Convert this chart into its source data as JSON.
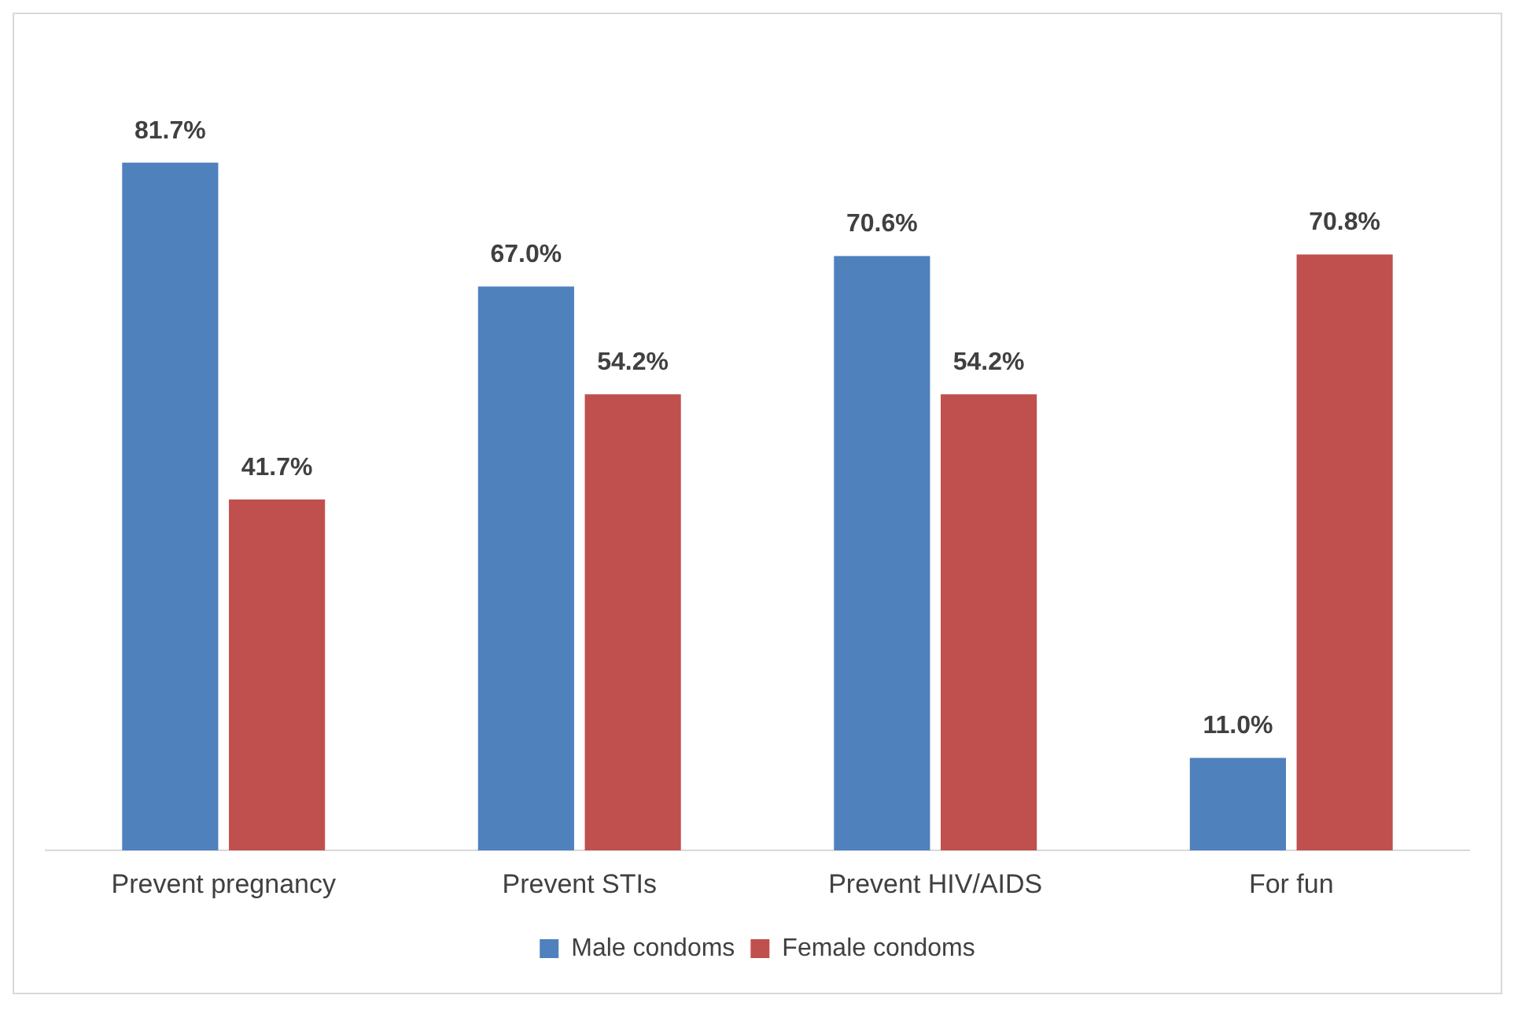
{
  "chart_data": {
    "type": "bar",
    "categories": [
      "Prevent pregnancy",
      "Prevent STIs",
      "Prevent HIV/AIDS",
      "For fun"
    ],
    "series": [
      {
        "name": "Male condoms",
        "color": "#4f81bd",
        "values": [
          81.7,
          67.0,
          70.6,
          11.0
        ],
        "value_labels": [
          "81.7%",
          "67.0%",
          "70.6%",
          "11.0%"
        ]
      },
      {
        "name": "Female condoms",
        "color": "#c0504d",
        "values": [
          41.7,
          54.2,
          54.2,
          70.8
        ],
        "value_labels": [
          "41.7%",
          "54.2%",
          "54.2%",
          "70.8%"
        ]
      }
    ],
    "grid": false,
    "legend": "bottom"
  }
}
